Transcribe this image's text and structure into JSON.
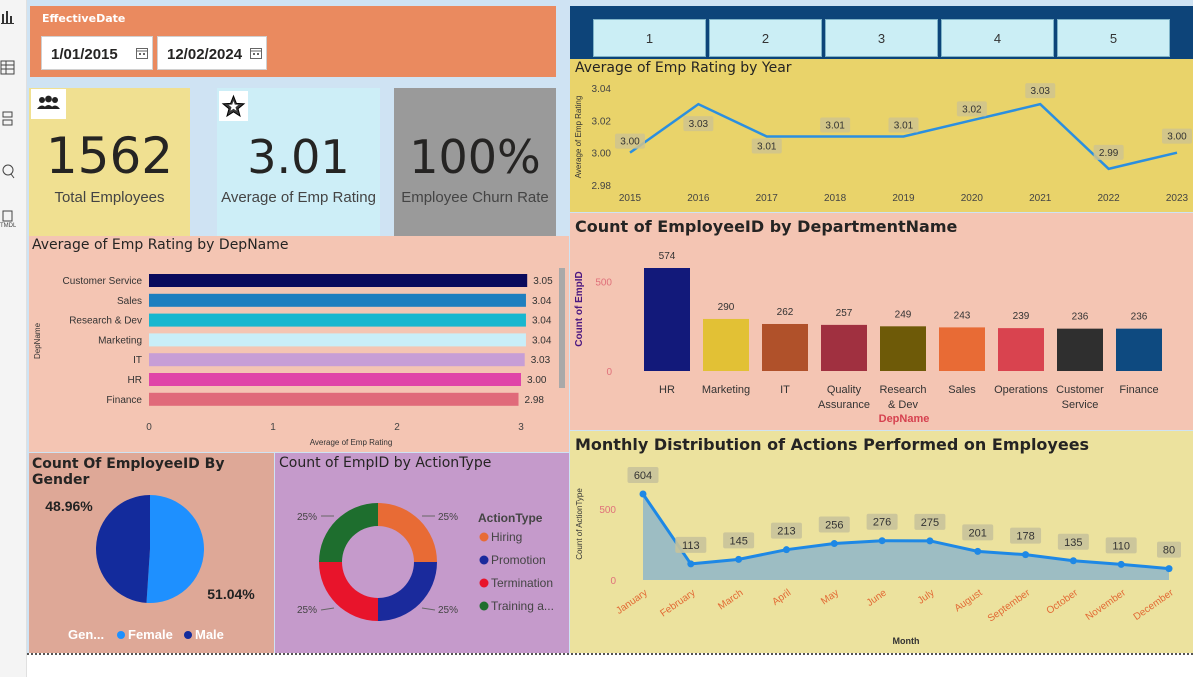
{
  "filter": {
    "label": "EffectiveDate",
    "start_date": "1/01/2015",
    "end_date": "12/02/2024"
  },
  "pages": [
    "1",
    "2",
    "3",
    "4",
    "5"
  ],
  "kpis": [
    {
      "value": "1562",
      "label": "Total Employees",
      "icon": "people-icon"
    },
    {
      "value": "3.01",
      "label": "Average of Emp Rating",
      "icon": "star-icon"
    },
    {
      "value": "100%",
      "label": "Employee Churn Rate"
    }
  ],
  "chart_data": [
    {
      "id": "rating_by_year",
      "type": "line",
      "title": "Average of Emp Rating by Year",
      "ylabel": "Average of Emp Rating",
      "x": [
        "2015",
        "2016",
        "2017",
        "2018",
        "2019",
        "2020",
        "2021",
        "2022",
        "2023"
      ],
      "values": [
        3.0,
        3.03,
        3.01,
        3.01,
        3.01,
        3.02,
        3.03,
        2.99,
        3.0
      ],
      "data_labels": [
        "3.00",
        "3.03",
        "3.01",
        "3.01",
        "3.01",
        "3.02",
        "3.03",
        "2.99",
        "3.00"
      ],
      "yticks": [
        "2.98",
        "3.00",
        "3.02",
        "3.04"
      ],
      "ylim": [
        2.98,
        3.04
      ],
      "color": "#2b8fe0"
    },
    {
      "id": "rating_by_dept",
      "type": "bar",
      "orientation": "horizontal",
      "title": "Average of Emp Rating by DepName",
      "xlabel": "Average of Emp Rating",
      "ylabel": "DepName",
      "categories": [
        "Customer Service",
        "Sales",
        "Research & Dev",
        "Marketing",
        "IT",
        "HR",
        "Finance"
      ],
      "values": [
        3.05,
        3.04,
        3.04,
        3.04,
        3.03,
        3.0,
        2.98
      ],
      "data_labels": [
        "3.05",
        "3.04",
        "3.04",
        "3.04",
        "3.03",
        "3.00",
        "2.98"
      ],
      "colors": [
        "#0a0a5c",
        "#1f7fbf",
        "#19b7cf",
        "#c9eef8",
        "#c79ed6",
        "#e045a8",
        "#e06a7a"
      ],
      "xticks": [
        "0",
        "1",
        "2",
        "3"
      ],
      "xlim": [
        0,
        3.2
      ]
    },
    {
      "id": "count_by_dept",
      "type": "bar",
      "title": "Count of EmployeeID by DepartmentName",
      "xlabel": "DepName",
      "ylabel": "Count of EmpID",
      "categories": [
        "HR",
        "Marketing",
        "IT",
        "Quality Assurance",
        "Research & Dev",
        "Sales",
        "Operations",
        "Customer Service",
        "Finance"
      ],
      "values": [
        574,
        290,
        262,
        257,
        249,
        243,
        239,
        236,
        236
      ],
      "data_labels": [
        "574",
        "290",
        "262",
        "257",
        "249",
        "243",
        "239",
        "236",
        "236"
      ],
      "colors": [
        "#12197a",
        "#e2c135",
        "#b0512a",
        "#a03040",
        "#6e5a08",
        "#e86b35",
        "#d9434f",
        "#2f2f2f",
        "#0e4a80"
      ],
      "yticks": [
        "0",
        "500"
      ],
      "ylim": [
        0,
        600
      ]
    },
    {
      "id": "gender",
      "type": "pie",
      "title": "Count Of EmployeeID By Gender",
      "legend_title": "Gen...",
      "slices": [
        {
          "label": "Female",
          "value": 51.04,
          "display": "51.04%",
          "color": "#1e90ff"
        },
        {
          "label": "Male",
          "value": 48.96,
          "display": "48.96%",
          "color": "#132b9c"
        }
      ]
    },
    {
      "id": "action_type",
      "type": "pie",
      "title": "Count of EmpID by ActionType",
      "legend_title": "ActionType",
      "slices": [
        {
          "label": "Hiring",
          "value": 25,
          "display": "25%",
          "color": "#e86b35"
        },
        {
          "label": "Promotion",
          "value": 25,
          "display": "25%",
          "color": "#1a2a9c"
        },
        {
          "label": "Termination",
          "value": 25,
          "display": "25%",
          "color": "#e8142b"
        },
        {
          "label": "Training a...",
          "value": 25,
          "display": "25%",
          "color": "#1e6e2e"
        }
      ]
    },
    {
      "id": "monthly_actions",
      "type": "area",
      "title": "Monthly Distribution of Actions Performed on Employees",
      "xlabel": "Month",
      "ylabel": "Count of ActionType",
      "x": [
        "January",
        "February",
        "March",
        "April",
        "May",
        "June",
        "July",
        "August",
        "September",
        "October",
        "November",
        "December"
      ],
      "values": [
        604,
        113,
        145,
        213,
        256,
        276,
        275,
        201,
        178,
        135,
        110,
        80
      ],
      "data_labels": [
        "604",
        "113",
        "145",
        "213",
        "256",
        "276",
        "275",
        "201",
        "178",
        "135",
        "110",
        "80"
      ],
      "yticks": [
        "0",
        "500"
      ],
      "ylim": [
        0,
        620
      ],
      "color": "#1e88e5"
    }
  ]
}
